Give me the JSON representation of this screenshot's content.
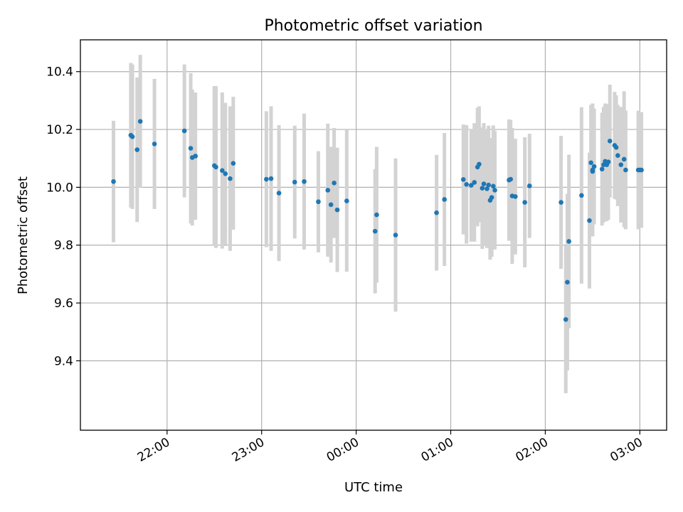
{
  "chart_data": {
    "type": "scatter",
    "title": "Photometric offset variation",
    "xlabel": "UTC time",
    "ylabel": "Photometric offset",
    "grid": true,
    "x_is_time_utc": true,
    "x_ticks": [
      "22:00",
      "23:00",
      "00:00",
      "01:00",
      "02:00",
      "03:00"
    ],
    "y_ticks": [
      "9.4",
      "9.6",
      "9.8",
      "10.0",
      "10.2",
      "10.4"
    ],
    "xlim": [
      "21:05",
      "03:17"
    ],
    "ylim": [
      9.16,
      10.51
    ],
    "colors": {
      "point": "#1f77b4",
      "errorbar": "#d3d3d3"
    },
    "series": [
      {
        "x": [
          "21:26",
          "21:37",
          "21:38",
          "21:41",
          "21:43",
          "21:52",
          "22:11",
          "22:15",
          "22:16",
          "22:18",
          "22:30",
          "22:31",
          "22:35",
          "22:37",
          "22:40",
          "22:42",
          "23:03",
          "23:06",
          "23:11",
          "23:21",
          "23:27",
          "23:36",
          "23:42",
          "23:44",
          "23:46",
          "23:48",
          "23:54",
          "00:12",
          "00:13",
          "00:25",
          "00:51",
          "00:56",
          "01:08",
          "01:10",
          "01:13",
          "01:15",
          "01:17",
          "01:18",
          "01:20",
          "01:21",
          "01:23",
          "01:24",
          "01:25",
          "01:26",
          "01:27",
          "01:28",
          "01:37",
          "01:38",
          "01:39",
          "01:41",
          "01:47",
          "01:50",
          "02:10",
          "02:13",
          "02:14",
          "02:15",
          "02:23",
          "02:28",
          "02:29",
          "02:30",
          "02:30",
          "02:31",
          "02:36",
          "02:37",
          "02:38",
          "02:39",
          "02:40",
          "02:41",
          "02:44",
          "02:45",
          "02:46",
          "02:48",
          "02:50",
          "02:51",
          "02:59",
          "03:00",
          "03:01"
        ],
        "y": [
          10.02,
          10.18,
          10.175,
          10.13,
          10.228,
          10.15,
          10.195,
          10.135,
          10.103,
          10.108,
          10.075,
          10.07,
          10.058,
          10.047,
          10.03,
          10.083,
          10.028,
          10.03,
          9.98,
          10.018,
          10.02,
          9.95,
          9.99,
          9.94,
          10.015,
          9.922,
          9.953,
          9.848,
          9.905,
          9.835,
          9.912,
          9.958,
          10.027,
          10.01,
          10.007,
          10.017,
          10.07,
          10.08,
          9.997,
          10.012,
          9.995,
          10.008,
          9.955,
          9.965,
          10.004,
          9.99,
          10.025,
          10.028,
          9.97,
          9.968,
          9.948,
          10.005,
          9.948,
          9.543,
          9.672,
          9.813,
          9.972,
          9.885,
          10.085,
          10.06,
          10.055,
          10.072,
          10.063,
          10.078,
          10.09,
          10.078,
          10.088,
          10.16,
          10.145,
          10.138,
          10.11,
          10.078,
          10.097,
          10.06,
          10.06,
          10.06,
          10.06
        ],
        "yerr": [
          0.21,
          0.25,
          0.25,
          0.25,
          0.23,
          0.225,
          0.23,
          0.26,
          0.235,
          0.22,
          0.275,
          0.28,
          0.27,
          0.245,
          0.25,
          0.23,
          0.235,
          0.25,
          0.235,
          0.195,
          0.235,
          0.175,
          0.23,
          0.2,
          0.19,
          0.215,
          0.245,
          0.215,
          0.235,
          0.265,
          0.2,
          0.23,
          0.19,
          0.205,
          0.195,
          0.205,
          0.205,
          0.2,
          0.21,
          0.21,
          0.205,
          0.205,
          0.205,
          0.205,
          0.21,
          0.205,
          0.21,
          0.205,
          0.235,
          0.2,
          0.225,
          0.18,
          0.23,
          0.255,
          0.305,
          0.3,
          0.305,
          0.235,
          0.2,
          0.23,
          0.22,
          0.2,
          0.195,
          0.2,
          0.2,
          0.195,
          0.2,
          0.195,
          0.185,
          0.18,
          0.175,
          0.2,
          0.235,
          0.205,
          0.205,
          0.2,
          0.2
        ]
      }
    ]
  }
}
